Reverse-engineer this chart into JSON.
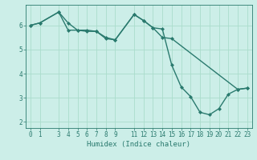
{
  "title": "",
  "xlabel": "Humidex (Indice chaleur)",
  "ylabel": "",
  "background_color": "#cceee8",
  "grid_color": "#aaddcc",
  "line_color": "#2a7a6e",
  "xlim": [
    -0.5,
    23.5
  ],
  "ylim": [
    1.75,
    6.85
  ],
  "xticks": [
    0,
    1,
    3,
    4,
    5,
    6,
    7,
    8,
    9,
    11,
    12,
    13,
    14,
    15,
    16,
    17,
    18,
    19,
    20,
    21,
    22,
    23
  ],
  "yticks": [
    2,
    3,
    4,
    5,
    6
  ],
  "line1_x": [
    0,
    1,
    3,
    4,
    5,
    6,
    7,
    8,
    9,
    11,
    12,
    13,
    14,
    15,
    16,
    17,
    18,
    19,
    20,
    21,
    22,
    23
  ],
  "line1_y": [
    6.0,
    6.1,
    6.55,
    6.1,
    5.8,
    5.8,
    5.75,
    5.45,
    5.4,
    6.45,
    6.2,
    5.9,
    5.85,
    4.35,
    3.45,
    3.05,
    2.4,
    2.3,
    2.55,
    3.15,
    3.35,
    3.4
  ],
  "line2_x": [
    0,
    1,
    3,
    4,
    5,
    6,
    7,
    8,
    9,
    11,
    12,
    13,
    14,
    15,
    22,
    23
  ],
  "line2_y": [
    6.0,
    6.1,
    6.55,
    5.8,
    5.8,
    5.75,
    5.75,
    5.5,
    5.4,
    6.45,
    6.2,
    5.9,
    5.5,
    5.45,
    3.35,
    3.4
  ],
  "marker": "D",
  "marker_size": 2,
  "line_width": 1.0,
  "tick_fontsize": 5.5,
  "xlabel_fontsize": 6.5
}
